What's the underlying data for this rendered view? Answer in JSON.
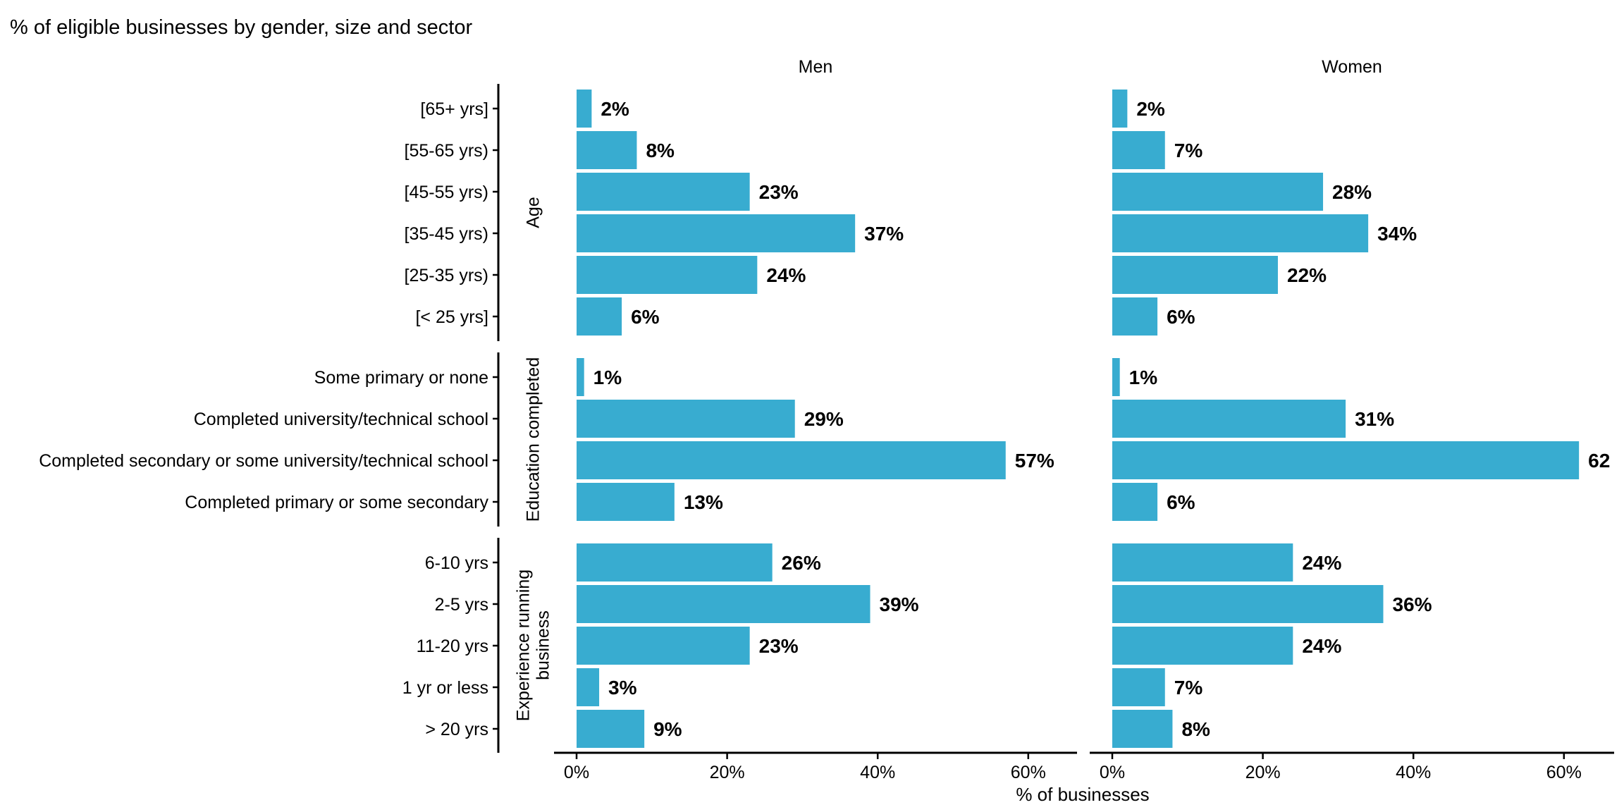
{
  "chart_data": {
    "type": "bar",
    "orientation": "horizontal",
    "title": "% of eligible businesses by gender, size and sector",
    "xlabel": "% of businesses",
    "ylabel": "",
    "xlim": [
      0,
      0.65
    ],
    "x_ticks": [
      {
        "value": 0,
        "label": "0%"
      },
      {
        "value": 0.2,
        "label": "20%"
      },
      {
        "value": 0.4,
        "label": "40%"
      },
      {
        "value": 0.6,
        "label": "60%"
      }
    ],
    "grid": false,
    "legend": "none",
    "bar_color": "#38ACD0",
    "facets": [
      "Men",
      "Women"
    ],
    "groups": [
      {
        "name": "Age",
        "label_lines": [
          "Age"
        ],
        "categories": [
          "[65+ yrs]",
          "[55-65 yrs)",
          "[45-55 yrs)",
          "[35-45 yrs)",
          "[25-35 yrs)",
          "[< 25 yrs]"
        ],
        "values": {
          "Men": [
            0.02,
            0.08,
            0.23,
            0.37,
            0.24,
            0.06
          ],
          "Women": [
            0.02,
            0.07,
            0.28,
            0.34,
            0.22,
            0.06
          ]
        },
        "labels": {
          "Men": [
            "2%",
            "8%",
            "23%",
            "37%",
            "24%",
            "6%"
          ],
          "Women": [
            "2%",
            "7%",
            "28%",
            "34%",
            "22%",
            "6%"
          ]
        }
      },
      {
        "name": "Education completed",
        "label_lines": [
          "Education completed"
        ],
        "categories": [
          "Some primary or none",
          "Completed university/technical school",
          "Completed secondary or some university/technical school",
          "Completed primary or some secondary"
        ],
        "values": {
          "Men": [
            0.01,
            0.29,
            0.57,
            0.13
          ],
          "Women": [
            0.01,
            0.31,
            0.62,
            0.06
          ]
        },
        "labels": {
          "Men": [
            "1%",
            "29%",
            "57%",
            "13%"
          ],
          "Women": [
            "1%",
            "31%",
            "62",
            "6%"
          ]
        }
      },
      {
        "name": "Experience running business",
        "label_lines": [
          "Experience running",
          "business"
        ],
        "categories": [
          "6-10 yrs",
          "2-5 yrs",
          "11-20 yrs",
          "1 yr or less",
          "> 20 yrs"
        ],
        "values": {
          "Men": [
            0.26,
            0.39,
            0.23,
            0.03,
            0.09
          ],
          "Women": [
            0.24,
            0.36,
            0.24,
            0.07,
            0.08
          ]
        },
        "labels": {
          "Men": [
            "26%",
            "39%",
            "23%",
            "3%",
            "9%"
          ],
          "Women": [
            "24%",
            "36%",
            "24%",
            "7%",
            "8%"
          ]
        }
      }
    ]
  }
}
